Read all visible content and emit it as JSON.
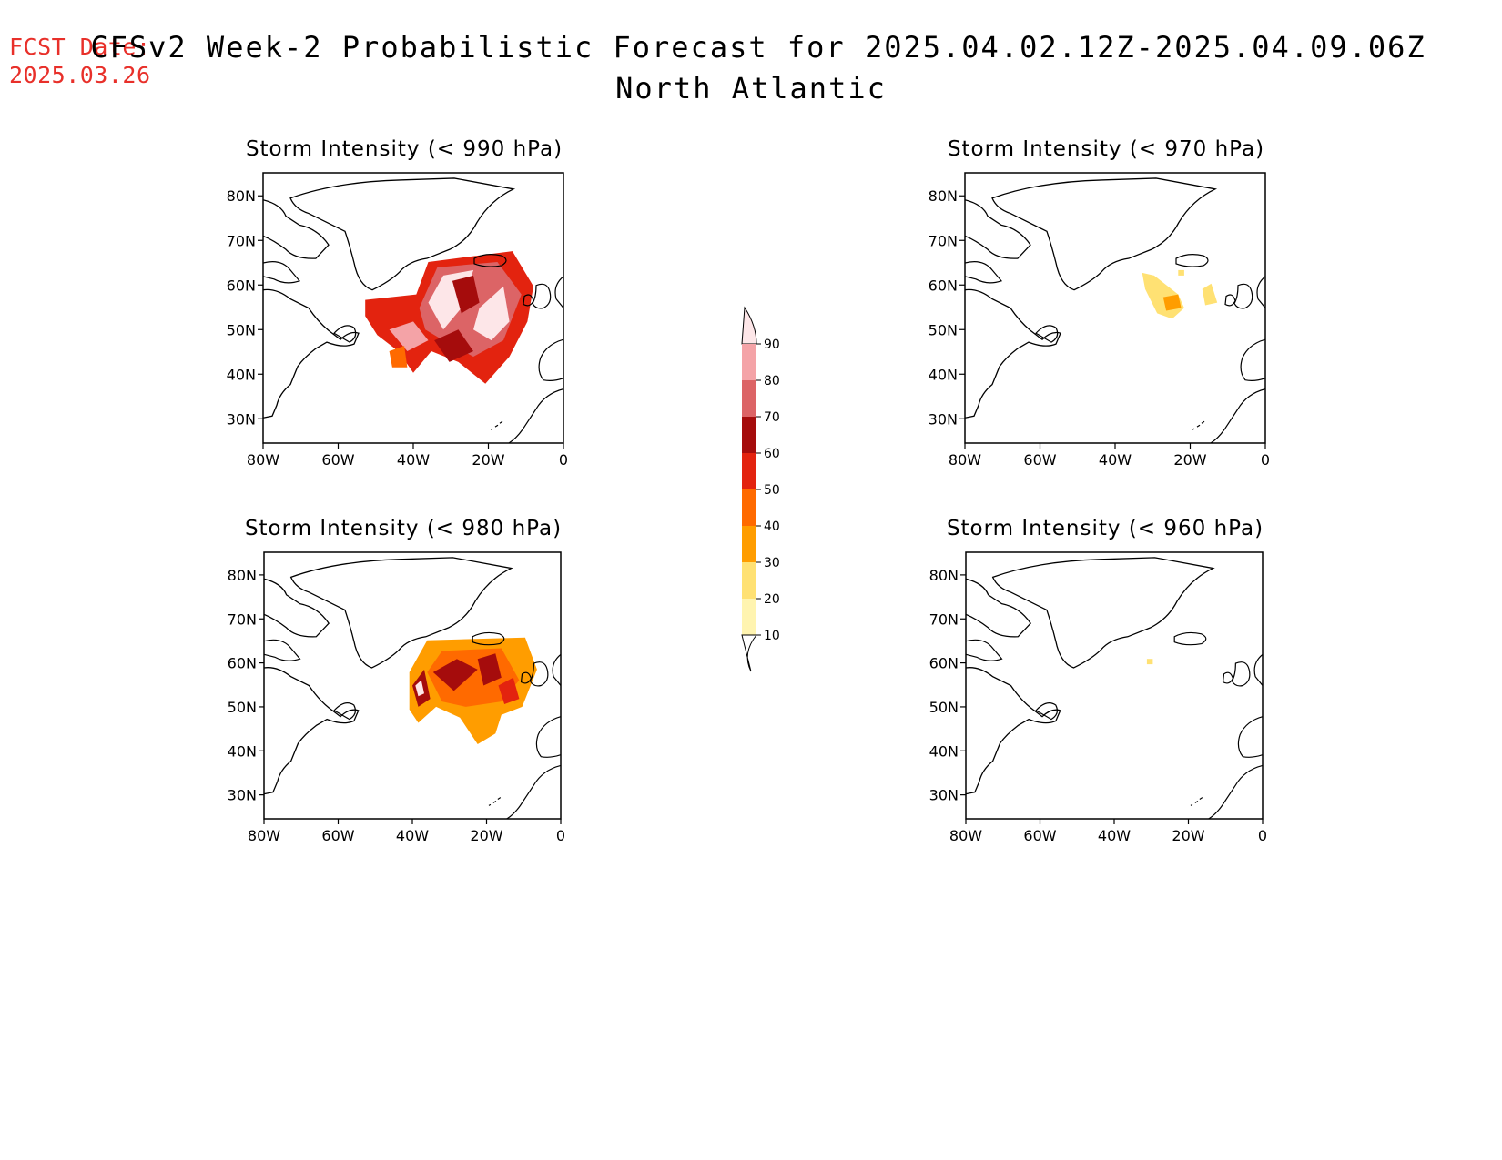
{
  "header": {
    "fcst_label": "FCST Date:",
    "fcst_date": "2025.03.26",
    "title": "CFSv2 Week-2 Probabilistic Forecast for 2025.04.02.12Z-2025.04.09.06Z",
    "subtitle": "North Atlantic"
  },
  "axes": {
    "lon_ticks": [
      "80W",
      "60W",
      "40W",
      "20W",
      "0"
    ],
    "lat_ticks": [
      "80N",
      "70N",
      "60N",
      "50N",
      "40N",
      "30N"
    ]
  },
  "panels": [
    {
      "title": "Storm Intensity (< 990 hPa)"
    },
    {
      "title": "Storm Intensity (< 970 hPa)"
    },
    {
      "title": "Storm Intensity (< 980 hPa)"
    },
    {
      "title": "Storm Intensity (< 960 hPa)"
    }
  ],
  "colorbar": {
    "labels": [
      "90",
      "80",
      "70",
      "60",
      "50",
      "40",
      "30",
      "20",
      "10"
    ],
    "colors": [
      "#fde6e8",
      "#f4a3a7",
      "#dc6466",
      "#a50c0c",
      "#e3230f",
      "#ff6a00",
      "#ff9d00",
      "#ffe173",
      "#fff4b0"
    ]
  }
}
